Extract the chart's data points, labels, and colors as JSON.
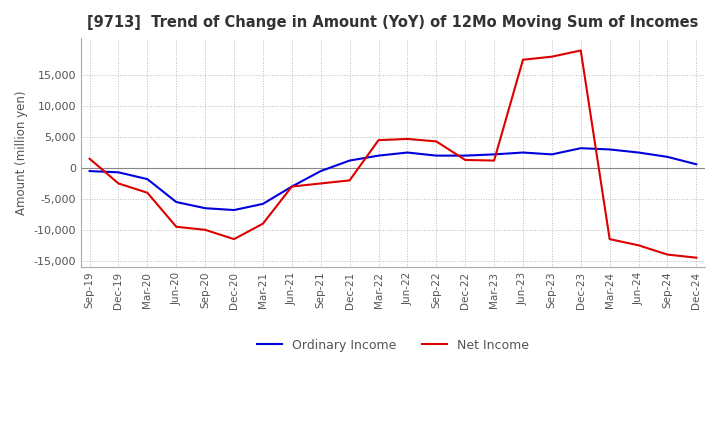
{
  "title": "[9713]  Trend of Change in Amount (YoY) of 12Mo Moving Sum of Incomes",
  "ylabel": "Amount (million yen)",
  "ylim": [
    -16000,
    21000
  ],
  "yticks": [
    -15000,
    -10000,
    -5000,
    0,
    5000,
    10000,
    15000
  ],
  "background_color": "#ffffff",
  "grid_color": "#bbbbbb",
  "ordinary_income_color": "#0000dd",
  "net_income_color": "#dd0000",
  "dates": [
    "Sep-19",
    "Dec-19",
    "Mar-20",
    "Jun-20",
    "Sep-20",
    "Dec-20",
    "Mar-21",
    "Jun-21",
    "Sep-21",
    "Dec-21",
    "Mar-22",
    "Jun-22",
    "Sep-22",
    "Dec-22",
    "Mar-23",
    "Jun-23",
    "Sep-23",
    "Dec-23",
    "Mar-24",
    "Jun-24",
    "Sep-24",
    "Dec-24"
  ],
  "ordinary_income": [
    -500,
    -700,
    -1800,
    -5500,
    -6500,
    -6800,
    -5800,
    -3000,
    -500,
    1200,
    2000,
    2500,
    2000,
    2000,
    2200,
    2500,
    2200,
    3200,
    3000,
    2500,
    1800,
    600
  ],
  "net_income": [
    1500,
    -2500,
    -4000,
    -9500,
    -10000,
    -11500,
    -9000,
    -3000,
    -2500,
    -2000,
    4500,
    4700,
    4300,
    1300,
    1200,
    17500,
    18000,
    19000,
    -11500,
    -12500,
    -14000,
    -14500
  ]
}
